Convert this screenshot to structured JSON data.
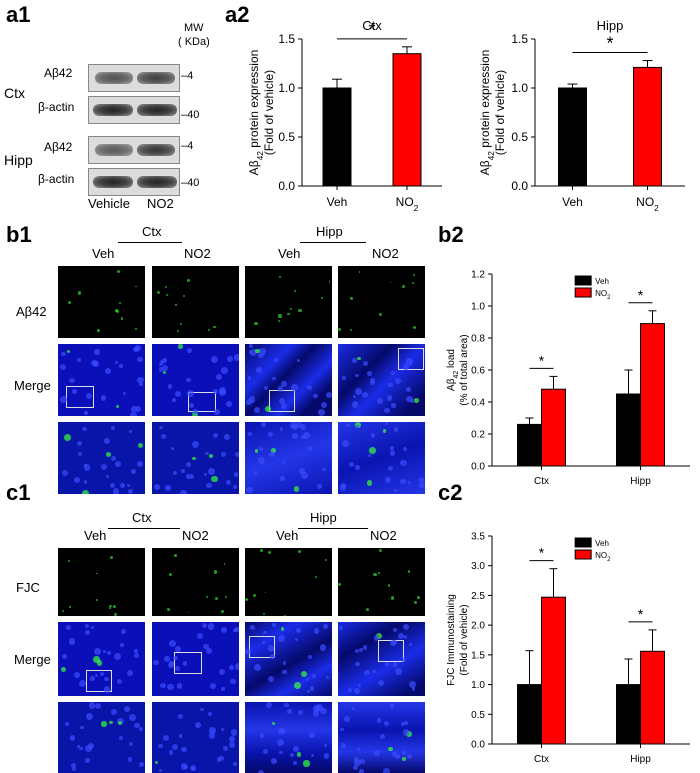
{
  "labels": {
    "a1": "a1",
    "a2": "a2",
    "b1": "b1",
    "b2": "b2",
    "c1": "c1",
    "c2": "c2"
  },
  "western_blot": {
    "mw_header": "MW",
    "mw_unit": "( KDa)",
    "regions": [
      {
        "name": "Ctx",
        "rows": [
          {
            "protein": "Aβ42",
            "mw": "4"
          },
          {
            "protein": "β-actin",
            "mw": "40"
          }
        ]
      },
      {
        "name": "Hipp",
        "rows": [
          {
            "protein": "Aβ42",
            "mw": "4"
          },
          {
            "protein": "β-actin",
            "mw": "40"
          }
        ]
      }
    ],
    "lanes": [
      "Vehicle",
      "NO2"
    ]
  },
  "micrograph_headers": {
    "regions": [
      "Ctx",
      "Hipp"
    ],
    "conditions": [
      "Veh",
      "NO2",
      "Veh",
      "NO2"
    ]
  },
  "b1_rows": [
    "Aβ42",
    "Merge"
  ],
  "c1_rows": [
    "FJC",
    "Merge"
  ],
  "colors": {
    "veh": "#000000",
    "no2": "#ff0000",
    "dapi": "#0a12c8",
    "signal": "#36ff36"
  },
  "chart_data": [
    {
      "id": "a2-ctx",
      "type": "bar",
      "title": "Ctx",
      "categories": [
        "Veh",
        "NO2"
      ],
      "values": [
        1.0,
        1.35
      ],
      "errors": [
        0.09,
        0.07
      ],
      "ylabel": "Aβ42 protein expression (Fold of vehicle)",
      "ylim": [
        0,
        1.5
      ],
      "yticks": [
        "0.0",
        "0.5",
        "1.0",
        "1.5"
      ],
      "significance": "*"
    },
    {
      "id": "a2-hipp",
      "type": "bar",
      "title": "Hipp",
      "categories": [
        "Veh",
        "NO2"
      ],
      "values": [
        1.0,
        1.21
      ],
      "errors": [
        0.04,
        0.07
      ],
      "ylabel": "Aβ42 protein expression (Fold of vehicle)",
      "ylim": [
        0,
        1.5
      ],
      "yticks": [
        "0.0",
        "0.5",
        "1.0",
        "1.5"
      ],
      "significance": "*"
    },
    {
      "id": "b2",
      "type": "bar",
      "categories": [
        "Ctx",
        "Hipp"
      ],
      "series": [
        {
          "name": "Veh",
          "values": [
            0.26,
            0.45
          ],
          "errors": [
            0.04,
            0.15
          ]
        },
        {
          "name": "NO2",
          "values": [
            0.48,
            0.89
          ],
          "errors": [
            0.08,
            0.08
          ]
        }
      ],
      "ylabel": "Aβ42 load (% of total area)",
      "ylim": [
        0,
        1.2
      ],
      "yticks": [
        "0.0",
        "0.2",
        "0.4",
        "0.6",
        "0.8",
        "1.0",
        "1.2"
      ],
      "significance": [
        "*",
        "*"
      ],
      "legend": "top-center"
    },
    {
      "id": "c2",
      "type": "bar",
      "categories": [
        "Ctx",
        "Hipp"
      ],
      "series": [
        {
          "name": "Veh",
          "values": [
            1.0,
            1.0
          ],
          "errors": [
            0.57,
            0.43
          ]
        },
        {
          "name": "NO2",
          "values": [
            2.47,
            1.56
          ],
          "errors": [
            0.48,
            0.36
          ]
        }
      ],
      "ylabel": "FJC Immunostaining (Fold of vehicle)",
      "ylim": [
        0,
        3.5
      ],
      "yticks": [
        "0.0",
        "0.5",
        "1.0",
        "1.5",
        "2.0",
        "2.5",
        "3.0",
        "3.5"
      ],
      "significance": [
        "*",
        "*"
      ],
      "legend": "top-center"
    }
  ]
}
